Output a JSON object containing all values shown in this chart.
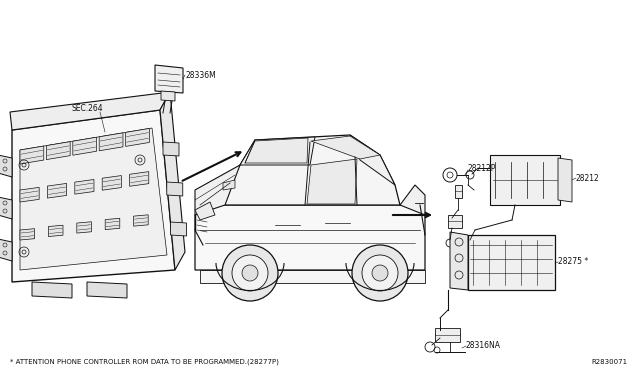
{
  "background_color": "#ffffff",
  "figsize": [
    6.4,
    3.72
  ],
  "dpi": 100,
  "labels": {
    "28336M": "28336M",
    "SEC264": "SEC.264",
    "28212P": "28212P",
    "28212": "28212",
    "28275": "28275 *",
    "28316NA": "28316NA",
    "asterisk_note": "* ATTENTION PHONE CONTROLLER ROM DATA TO BE PROGRAMMED.(28277P)",
    "ref_code": "R2830071"
  },
  "text_color": "#111111",
  "line_color": "#111111",
  "lw_main": 0.8,
  "lw_thin": 0.5,
  "font_size_label": 5.5,
  "font_size_note": 5.0
}
